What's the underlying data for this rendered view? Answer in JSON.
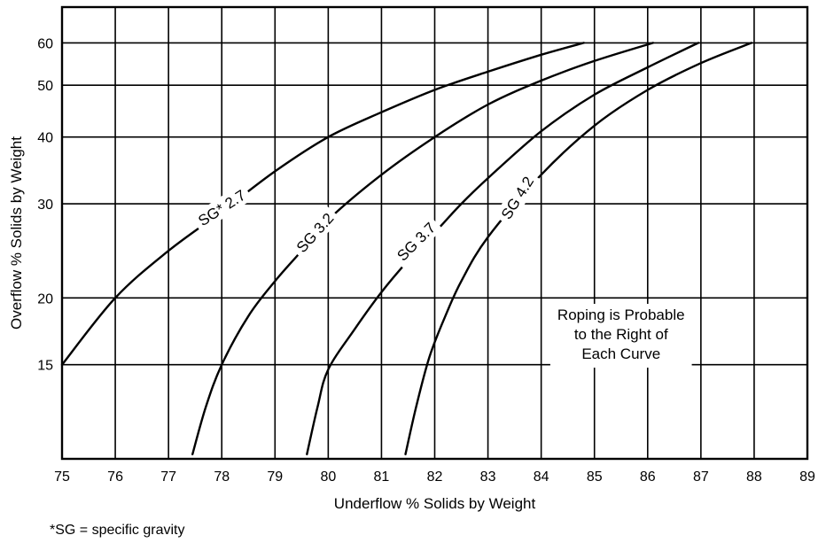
{
  "chart_data": {
    "type": "line",
    "title": "",
    "xlabel": "Underflow % Solids by Weight",
    "ylabel": "Overflow % Solids by Weight",
    "xlim": [
      75,
      89
    ],
    "ylim": [
      10,
      70
    ],
    "y_scale": "log",
    "grid": true,
    "x_ticks": [
      "75",
      "76",
      "77",
      "78",
      "79",
      "80",
      "81",
      "82",
      "83",
      "84",
      "85",
      "86",
      "87",
      "88",
      "89"
    ],
    "y_ticks": [
      {
        "value": 15,
        "label": "15"
      },
      {
        "value": 20,
        "label": "20"
      },
      {
        "value": 30,
        "label": "30"
      },
      {
        "value": 40,
        "label": "40"
      },
      {
        "value": 50,
        "label": "50"
      },
      {
        "value": 60,
        "label": "60"
      }
    ],
    "series": [
      {
        "label": "SG* 2.7",
        "label_at": {
          "x": 78.0,
          "y": 29.5,
          "angle": -33
        },
        "points": [
          [
            75.0,
            15
          ],
          [
            76.0,
            20
          ],
          [
            77.0,
            24.5
          ],
          [
            78.0,
            29
          ],
          [
            79.0,
            34.5
          ],
          [
            80.0,
            40
          ],
          [
            81.0,
            44.5
          ],
          [
            82.0,
            49
          ],
          [
            83.0,
            53
          ],
          [
            84.0,
            57
          ],
          [
            84.8,
            60
          ]
        ]
      },
      {
        "label": "SG 3.2",
        "label_at": {
          "x": 79.75,
          "y": 26.5,
          "angle": -48
        },
        "points": [
          [
            77.45,
            10.2
          ],
          [
            77.7,
            12.5
          ],
          [
            78.0,
            15
          ],
          [
            78.5,
            18.5
          ],
          [
            79.0,
            21.5
          ],
          [
            79.5,
            24.5
          ],
          [
            80.0,
            28
          ],
          [
            81.0,
            34
          ],
          [
            82.0,
            40
          ],
          [
            83.0,
            46
          ],
          [
            84.0,
            51
          ],
          [
            85.0,
            55.5
          ],
          [
            86.1,
            60
          ]
        ]
      },
      {
        "label": "SG 3.7",
        "label_at": {
          "x": 81.65,
          "y": 25.5,
          "angle": -45
        },
        "points": [
          [
            79.6,
            10.2
          ],
          [
            79.8,
            12.5
          ],
          [
            80.0,
            14.7
          ],
          [
            80.5,
            17.5
          ],
          [
            81.0,
            20.5
          ],
          [
            81.5,
            23.5
          ],
          [
            82.0,
            26.5
          ],
          [
            82.5,
            30
          ],
          [
            83.0,
            33.5
          ],
          [
            84.0,
            41
          ],
          [
            85.0,
            48
          ],
          [
            86.0,
            54
          ],
          [
            86.95,
            60
          ]
        ]
      },
      {
        "label": "SG 4.2",
        "label_at": {
          "x": 83.55,
          "y": 30.8,
          "angle": -58
        },
        "points": [
          [
            81.45,
            10.2
          ],
          [
            81.65,
            12.5
          ],
          [
            81.9,
            15.5
          ],
          [
            82.2,
            18.5
          ],
          [
            82.5,
            21.5
          ],
          [
            83.0,
            26
          ],
          [
            84.0,
            34
          ],
          [
            85.0,
            42
          ],
          [
            86.0,
            49
          ],
          [
            87.0,
            55
          ],
          [
            87.95,
            60
          ]
        ]
      }
    ],
    "annotations": [
      {
        "lines": [
          "Roping is Probable",
          "to the Right of",
          "Each Curve"
        ],
        "x": 85.5,
        "y": 18.2
      }
    ],
    "footnote": "*SG = specific gravity"
  }
}
